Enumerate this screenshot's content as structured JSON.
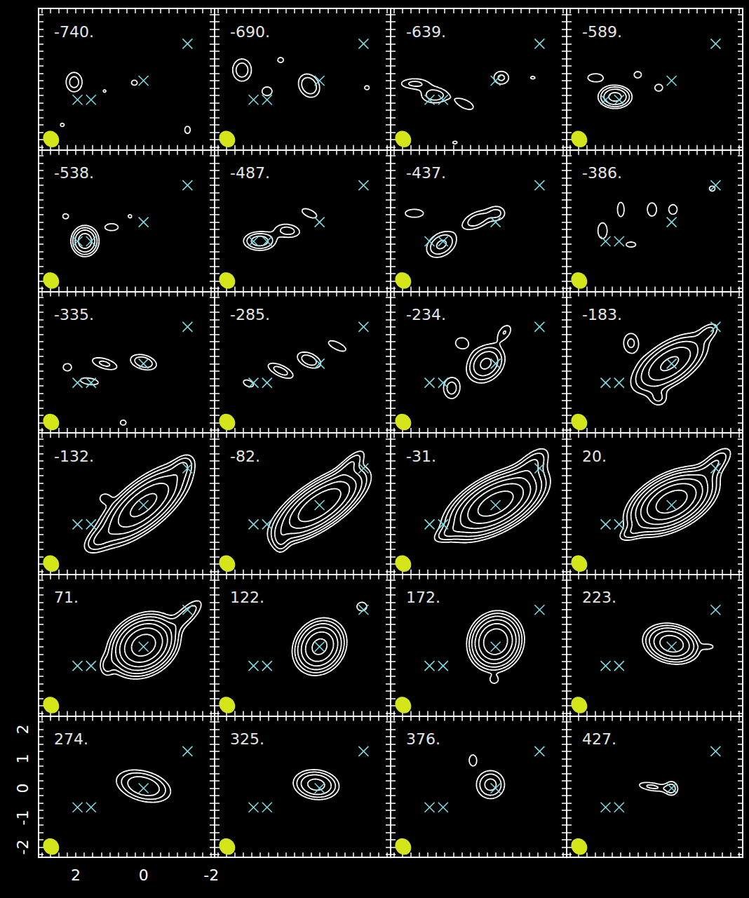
{
  "chart_data": {
    "type": "contour",
    "color": "#ffffff",
    "xlim": [
      3.1,
      -2.1
    ],
    "ylim": [
      -2.35,
      2.45
    ],
    "xticks": [
      2,
      0,
      -2
    ],
    "yticks": [
      -2,
      -1,
      0,
      1,
      2
    ],
    "levels": [
      1,
      1.6,
      2.5,
      4,
      6.3,
      10,
      16
    ],
    "markers": {
      "color": "#7fd8e0",
      "marker": "x",
      "positions": [
        [
          -1.3,
          1.25
        ],
        [
          0,
          0
        ],
        [
          1.55,
          -0.65
        ],
        [
          1.95,
          -0.65
        ]
      ]
    },
    "beam": {
      "color": "#d4e61a",
      "x": 2.73,
      "y": -1.98,
      "major": 0.57,
      "minor": 0.46,
      "pa": 20
    },
    "panels": [
      {
        "label": "-740.",
        "components": [
          {
            "x": 2.05,
            "y": -0.05,
            "major": 0.28,
            "minor": 0.2,
            "pa": 0,
            "peak": 2.0
          },
          {
            "x": 0.27,
            "y": -0.07,
            "major": 0.12,
            "minor": 0.12,
            "pa": 0,
            "peak": 1.3
          },
          {
            "x": -1.3,
            "y": -1.67,
            "major": 0.15,
            "minor": 0.1,
            "pa": 0,
            "peak": 1.4
          },
          {
            "x": 1.15,
            "y": -0.35,
            "major": 0.08,
            "minor": 0.08,
            "pa": 0,
            "peak": 1.2
          },
          {
            "x": 2.4,
            "y": -1.5,
            "major": 0.1,
            "minor": 0.1,
            "pa": 0,
            "peak": 1.2
          }
        ]
      },
      {
        "label": "-690.",
        "components": [
          {
            "x": 2.29,
            "y": 0.36,
            "major": 0.3,
            "minor": 0.22,
            "pa": 0,
            "peak": 2.2
          },
          {
            "x": 0.31,
            "y": -0.17,
            "major": 0.3,
            "minor": 0.22,
            "pa": 20,
            "peak": 2.5
          },
          {
            "x": 1.15,
            "y": 0.7,
            "major": 0.12,
            "minor": 0.12,
            "pa": 0,
            "peak": 1.3
          },
          {
            "x": -1.4,
            "y": -0.24,
            "major": 0.1,
            "minor": 0.1,
            "pa": 0,
            "peak": 1.3
          },
          {
            "x": 1.55,
            "y": -0.36,
            "major": 0.18,
            "minor": 0.18,
            "pa": 0,
            "peak": 1.4
          }
        ]
      },
      {
        "label": "-639.",
        "components": [
          {
            "x": 2.4,
            "y": -0.1,
            "major": 0.35,
            "minor": 0.15,
            "pa": 90,
            "peak": 1.8
          },
          {
            "x": 1.8,
            "y": -0.5,
            "major": 0.3,
            "minor": 0.2,
            "pa": 90,
            "peak": 2.2
          },
          {
            "x": 0.9,
            "y": -0.8,
            "major": 0.3,
            "minor": 0.15,
            "pa": 60,
            "peak": 1.5
          },
          {
            "x": -0.17,
            "y": 0.1,
            "major": 0.2,
            "minor": 0.2,
            "pa": 0,
            "peak": 1.8
          },
          {
            "x": -1.1,
            "y": 0.1,
            "major": 0.12,
            "minor": 0.08,
            "pa": 90,
            "peak": 1.2
          },
          {
            "x": 1.2,
            "y": -2.1,
            "major": 0.12,
            "minor": 0.08,
            "pa": 90,
            "peak": 1.2
          }
        ]
      },
      {
        "label": "-589.",
        "components": [
          {
            "x": 1.67,
            "y": -0.55,
            "major": 0.28,
            "minor": 0.22,
            "pa": 90,
            "peak": 5
          },
          {
            "x": 2.25,
            "y": 0.1,
            "major": 0.25,
            "minor": 0.15,
            "pa": 90,
            "peak": 1.5
          },
          {
            "x": 0.38,
            "y": -0.24,
            "major": 0.12,
            "minor": 0.12,
            "pa": 0,
            "peak": 1.6
          },
          {
            "x": 1.0,
            "y": 0.2,
            "major": 0.15,
            "minor": 0.15,
            "pa": 0,
            "peak": 1.3
          }
        ]
      },
      {
        "label": "-538.",
        "components": [
          {
            "x": 1.73,
            "y": -0.64,
            "major": 0.28,
            "minor": 0.22,
            "pa": 0,
            "peak": 6
          },
          {
            "x": 0.94,
            "y": -0.17,
            "major": 0.2,
            "minor": 0.12,
            "pa": 90,
            "peak": 1.6
          },
          {
            "x": 2.3,
            "y": 0.2,
            "major": 0.12,
            "minor": 0.12,
            "pa": 0,
            "peak": 1.3
          },
          {
            "x": 0.4,
            "y": 0.2,
            "major": 0.08,
            "minor": 0.08,
            "pa": 0,
            "peak": 1.3
          }
        ]
      },
      {
        "label": "-487.",
        "components": [
          {
            "x": 1.77,
            "y": -0.64,
            "major": 0.3,
            "minor": 0.2,
            "pa": 90,
            "peak": 3.5
          },
          {
            "x": 0.94,
            "y": -0.29,
            "major": 0.3,
            "minor": 0.18,
            "pa": 80,
            "peak": 2
          },
          {
            "x": 0.3,
            "y": 0.3,
            "major": 0.25,
            "minor": 0.12,
            "pa": 60,
            "peak": 1.6
          }
        ]
      },
      {
        "label": "-437.",
        "components": [
          {
            "x": 1.6,
            "y": -0.76,
            "major": 0.35,
            "minor": 0.25,
            "pa": -45,
            "peak": 2.8
          },
          {
            "x": 0.56,
            "y": 0.07,
            "major": 0.35,
            "minor": 0.2,
            "pa": -60,
            "peak": 2.2
          },
          {
            "x": 2.4,
            "y": 0.3,
            "major": 0.3,
            "minor": 0.15,
            "pa": 90,
            "peak": 1.5
          },
          {
            "x": -0.06,
            "y": 0.3,
            "major": 0.2,
            "minor": 0.2,
            "pa": 0,
            "peak": 1.6
          }
        ]
      },
      {
        "label": "-386.",
        "components": [
          {
            "x": 2.04,
            "y": -0.29,
            "major": 0.3,
            "minor": 0.15,
            "pa": 0,
            "peak": 1.5
          },
          {
            "x": 1.5,
            "y": 0.43,
            "major": 0.3,
            "minor": 0.12,
            "pa": 0,
            "peak": 1.4
          },
          {
            "x": 0.58,
            "y": 0.43,
            "major": 0.25,
            "minor": 0.15,
            "pa": 0,
            "peak": 1.5
          },
          {
            "x": -0.04,
            "y": 0.43,
            "major": 0.2,
            "minor": 0.15,
            "pa": 0,
            "peak": 1.4
          },
          {
            "x": 1.2,
            "y": -0.76,
            "major": 0.2,
            "minor": 0.12,
            "pa": 90,
            "peak": 1.3
          },
          {
            "x": -1.2,
            "y": 1.14,
            "major": 0.12,
            "minor": 0.12,
            "pa": 0,
            "peak": 1.3
          }
        ]
      },
      {
        "label": "-335.",
        "components": [
          {
            "x": 2.25,
            "y": -0.12,
            "major": 0.15,
            "minor": 0.15,
            "pa": 0,
            "peak": 1.4
          },
          {
            "x": 1.15,
            "y": 0,
            "major": 0.35,
            "minor": 0.15,
            "pa": 70,
            "peak": 1.8
          },
          {
            "x": 0,
            "y": 0.05,
            "major": 0.3,
            "minor": 0.18,
            "pa": 70,
            "peak": 2.4
          },
          {
            "x": 1.6,
            "y": -0.6,
            "major": 0.3,
            "minor": 0.12,
            "pa": 80,
            "peak": 1.5
          },
          {
            "x": 0.6,
            "y": -2.0,
            "major": 0.12,
            "minor": 0.12,
            "pa": 0,
            "peak": 1.3
          }
        ]
      },
      {
        "label": "-285.",
        "components": [
          {
            "x": 2.1,
            "y": -0.67,
            "major": 0.2,
            "minor": 0.12,
            "pa": 60,
            "peak": 1.4
          },
          {
            "x": 1.15,
            "y": -0.24,
            "major": 0.35,
            "minor": 0.15,
            "pa": 60,
            "peak": 2
          },
          {
            "x": 0.31,
            "y": 0.12,
            "major": 0.3,
            "minor": 0.18,
            "pa": 60,
            "peak": 2.2
          },
          {
            "x": -0.52,
            "y": 0.6,
            "major": 0.3,
            "minor": 0.12,
            "pa": 60,
            "peak": 1.6
          }
        ]
      },
      {
        "label": "-234.",
        "components": [
          {
            "x": 0.29,
            "y": 0,
            "major": 0.4,
            "minor": 0.3,
            "pa": -30,
            "peak": 4.5
          },
          {
            "x": 1.3,
            "y": -0.83,
            "major": 0.3,
            "minor": 0.2,
            "pa": 0,
            "peak": 2
          },
          {
            "x": 1.0,
            "y": 0.7,
            "major": 0.2,
            "minor": 0.2,
            "pa": 0,
            "peak": 1.5
          },
          {
            "x": -0.27,
            "y": 1.07,
            "major": 0.25,
            "minor": 0.15,
            "pa": -30,
            "peak": 1.6
          }
        ]
      },
      {
        "label": "-183.",
        "components": [
          {
            "x": 0.06,
            "y": 0,
            "major": 0.7,
            "minor": 0.35,
            "pa": -50,
            "peak": 7
          },
          {
            "x": 1.2,
            "y": 0.7,
            "major": 0.3,
            "minor": 0.2,
            "pa": 0,
            "peak": 1.8
          },
          {
            "x": -1.1,
            "y": 1.1,
            "major": 0.25,
            "minor": 0.15,
            "pa": -45,
            "peak": 1.6
          },
          {
            "x": 0.38,
            "y": -1.2,
            "major": 0.2,
            "minor": 0.2,
            "pa": 0,
            "peak": 1.5
          }
        ]
      },
      {
        "label": "-132.",
        "components": [
          {
            "x": 0,
            "y": 0,
            "major": 0.85,
            "minor": 0.35,
            "pa": -45,
            "peak": 12
          },
          {
            "x": 1.35,
            "y": -1.2,
            "major": 0.35,
            "minor": 0.2,
            "pa": -45,
            "peak": 1.8
          },
          {
            "x": -1.15,
            "y": 1.3,
            "major": 0.3,
            "minor": 0.18,
            "pa": -30,
            "peak": 1.8
          },
          {
            "x": 1.15,
            "y": 0.24,
            "major": 0.15,
            "minor": 0.15,
            "pa": 0,
            "peak": 1.4
          }
        ]
      },
      {
        "label": "-82.",
        "components": [
          {
            "x": 0,
            "y": 0,
            "major": 0.8,
            "minor": 0.33,
            "pa": -50,
            "peak": 16
          },
          {
            "x": 1.15,
            "y": -1.2,
            "major": 0.3,
            "minor": 0.15,
            "pa": 0,
            "peak": 1.6
          },
          {
            "x": -0.94,
            "y": 1.43,
            "major": 0.4,
            "minor": 0.15,
            "pa": -40,
            "peak": 2
          }
        ]
      },
      {
        "label": "-31.",
        "components": [
          {
            "x": 0,
            "y": 0.05,
            "major": 0.75,
            "minor": 0.38,
            "pa": -55,
            "peak": 22
          },
          {
            "x": -1.1,
            "y": 1.43,
            "major": 0.45,
            "minor": 0.22,
            "pa": -40,
            "peak": 2.2
          },
          {
            "x": 1.4,
            "y": -0.95,
            "major": 0.35,
            "minor": 0.15,
            "pa": -60,
            "peak": 1.5
          }
        ]
      },
      {
        "label": "20.",
        "components": [
          {
            "x": 0,
            "y": 0.12,
            "major": 0.65,
            "minor": 0.38,
            "pa": -55,
            "peak": 22
          },
          {
            "x": -1.3,
            "y": 1.43,
            "major": 0.45,
            "minor": 0.2,
            "pa": -40,
            "peak": 2.4
          },
          {
            "x": 1.2,
            "y": -0.95,
            "major": 0.3,
            "minor": 0.15,
            "pa": -60,
            "peak": 1.5
          }
        ]
      },
      {
        "label": "71.",
        "components": [
          {
            "x": 0,
            "y": 0.05,
            "major": 0.5,
            "minor": 0.4,
            "pa": -40,
            "peak": 22
          },
          {
            "x": -1.3,
            "y": 1.1,
            "major": 0.45,
            "minor": 0.18,
            "pa": -40,
            "peak": 2.2
          },
          {
            "x": 1.1,
            "y": -0.67,
            "major": 0.25,
            "minor": 0.15,
            "pa": 0,
            "peak": 1.5
          }
        ]
      },
      {
        "label": "122.",
        "components": [
          {
            "x": 0,
            "y": 0,
            "major": 0.45,
            "minor": 0.35,
            "pa": -20,
            "peak": 12
          },
          {
            "x": -1.25,
            "y": 1.36,
            "major": 0.15,
            "minor": 0.15,
            "pa": 0,
            "peak": 1.6
          }
        ]
      },
      {
        "label": "172.",
        "components": [
          {
            "x": 0,
            "y": 0.17,
            "major": 0.45,
            "minor": 0.36,
            "pa": -10,
            "peak": 16
          },
          {
            "x": 0.04,
            "y": -1.14,
            "major": 0.12,
            "minor": 0.12,
            "pa": 0,
            "peak": 1.3
          }
        ]
      },
      {
        "label": "223.",
        "components": [
          {
            "x": 0,
            "y": 0.1,
            "major": 0.42,
            "minor": 0.32,
            "pa": 70,
            "peak": 9
          },
          {
            "x": -1.1,
            "y": 0,
            "major": 0.15,
            "minor": 0.08,
            "pa": 90,
            "peak": 1.3
          }
        ]
      },
      {
        "label": "274.",
        "components": [
          {
            "x": 0,
            "y": 0.07,
            "major": 0.5,
            "minor": 0.3,
            "pa": 70,
            "peak": 4
          }
        ]
      },
      {
        "label": "325.",
        "components": [
          {
            "x": 0.1,
            "y": 0.12,
            "major": 0.38,
            "minor": 0.28,
            "pa": 80,
            "peak": 5
          }
        ]
      },
      {
        "label": "376.",
        "components": [
          {
            "x": 0.15,
            "y": 0.12,
            "major": 0.32,
            "minor": 0.28,
            "pa": 0,
            "peak": 3
          },
          {
            "x": 0.67,
            "y": 0.95,
            "major": 0.2,
            "minor": 0.12,
            "pa": 0,
            "peak": 1.5
          }
        ]
      },
      {
        "label": "427.",
        "components": [
          {
            "x": 0.58,
            "y": 0.05,
            "major": 0.35,
            "minor": 0.12,
            "pa": 80,
            "peak": 1.8
          },
          {
            "x": 0,
            "y": 0,
            "major": 0.2,
            "minor": 0.15,
            "pa": 0,
            "peak": 1.8
          }
        ]
      }
    ]
  }
}
